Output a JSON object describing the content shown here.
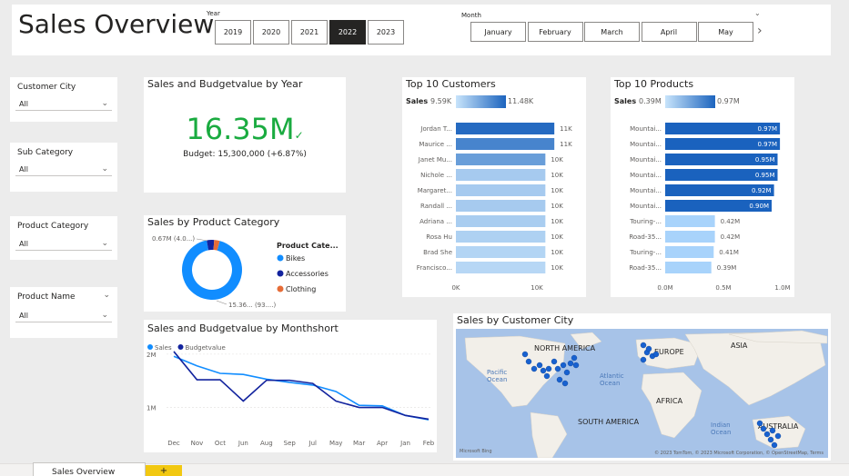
{
  "page_title": "Sales Overview",
  "year_slicer": {
    "label": "Year",
    "options": [
      "2019",
      "2020",
      "2021",
      "2022",
      "2023"
    ],
    "selected": "2022"
  },
  "month_slicer": {
    "label": "Month",
    "options": [
      "January",
      "February",
      "March",
      "April",
      "May"
    ]
  },
  "filters": [
    {
      "label": "Customer City",
      "value": "All"
    },
    {
      "label": "Sub Category",
      "value": "All"
    },
    {
      "label": "Product Category",
      "value": "All"
    },
    {
      "label": "Product Name",
      "value": "All"
    }
  ],
  "kpi": {
    "title": "Sales and Budgetvalue by Year",
    "value": "16.35M",
    "budget_text": "Budget: 15,300,000 (+6.87%)",
    "color": "#1aab40"
  },
  "top_customers": {
    "title": "Top 10 Customers",
    "legend_label": "Sales",
    "legend_min": "9.59K",
    "legend_max": "11.48K",
    "axis_ticks": [
      "0K",
      "10K"
    ]
  },
  "top_products": {
    "title": "Top 10 Products",
    "legend_label": "Sales",
    "legend_min": "0.39M",
    "legend_max": "0.97M",
    "axis_ticks": [
      "0.0M",
      "0.5M",
      "1.0M"
    ]
  },
  "product_category": {
    "title": "Sales by Product Category",
    "legend_title": "Product Cate...",
    "label_top": "0.67M (4.0...)",
    "label_bottom": "15.36... (93....)"
  },
  "monthly": {
    "title": "Sales and Budgetvalue by Monthshort",
    "y_ticks": [
      "2M",
      "1M"
    ]
  },
  "map": {
    "title": "Sales by Customer City",
    "labels": {
      "north_america": "NORTH AMERICA",
      "europe": "EUROPE",
      "asia": "ASIA",
      "africa": "AFRICA",
      "south_america": "SOUTH AMERICA",
      "australia": "AUSTRALIA",
      "pacific": "Pacific\nOcean",
      "atlantic": "Atlantic\nOcean",
      "indian": "Indian\nOcean"
    },
    "bing": "Microsoft Bing",
    "copyright": "© 2023 TomTom, © 2023 Microsoft Corporation, © OpenStreetMap, Terms"
  },
  "bottom_tab": "Sales Overview",
  "chart_data": [
    {
      "type": "bar",
      "title": "Top 10 Customers",
      "categories": [
        "Jordan T...",
        "Maurice ...",
        "Janet Mu...",
        "Nichole ...",
        "Margaret...",
        "Randall ...",
        "Adriana ...",
        "Rosa Hu",
        "Brad She",
        "Francisco..."
      ],
      "values": [
        11,
        11,
        10,
        10,
        10,
        10,
        10,
        10,
        10,
        10
      ],
      "value_labels": [
        "11K",
        "11K",
        "10K",
        "10K",
        "10K",
        "10K",
        "10K",
        "10K",
        "10K",
        "10K"
      ],
      "shade": [
        0.95,
        0.75,
        0.55,
        0.2,
        0.2,
        0.2,
        0.18,
        0.15,
        0.12,
        0.1
      ],
      "xlim": [
        0,
        12
      ]
    },
    {
      "type": "bar",
      "title": "Top 10 Products",
      "categories": [
        "Mountai...",
        "Mountai...",
        "Mountai...",
        "Mountai...",
        "Mountai...",
        "Mountai...",
        "Touring-...",
        "Road-35...",
        "Touring-...",
        "Road-35..."
      ],
      "values": [
        0.97,
        0.97,
        0.95,
        0.95,
        0.92,
        0.9,
        0.42,
        0.42,
        0.41,
        0.39
      ],
      "value_labels": [
        "0.97M",
        "0.97M",
        "0.95M",
        "0.95M",
        "0.92M",
        "0.90M",
        "0.42M",
        "0.42M",
        "0.41M",
        "0.39M"
      ],
      "xlim": [
        0,
        1.0
      ]
    },
    {
      "type": "pie",
      "title": "Sales by Product Category",
      "categories": [
        "Bikes",
        "Accessories",
        "Clothing"
      ],
      "values": [
        93,
        4.0,
        3.0
      ],
      "colors": [
        "#118dff",
        "#12239e",
        "#e66c37"
      ]
    },
    {
      "type": "line",
      "title": "Sales and Budgetvalue by Monthshort",
      "categories": [
        "Dec",
        "Nov",
        "Oct",
        "Jun",
        "Aug",
        "Sep",
        "Jul",
        "May",
        "Mar",
        "Apr",
        "Jan",
        "Feb"
      ],
      "series": [
        {
          "name": "Sales",
          "color": "#118dff",
          "values": [
            1.96,
            1.78,
            1.64,
            1.62,
            1.53,
            1.47,
            1.42,
            1.3,
            1.04,
            1.03,
            0.85,
            0.77
          ]
        },
        {
          "name": "Budgetvalue",
          "color": "#12239e",
          "values": [
            2.05,
            1.52,
            1.52,
            1.12,
            1.51,
            1.51,
            1.45,
            1.12,
            1.0,
            1.0,
            0.85,
            0.78
          ]
        }
      ],
      "ylim": [
        0.6,
        2.1
      ]
    }
  ]
}
